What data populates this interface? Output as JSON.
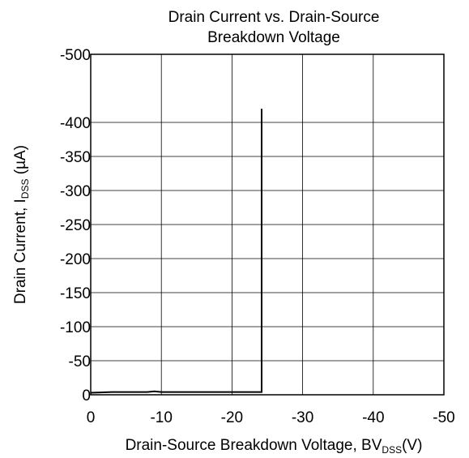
{
  "chart_data": {
    "type": "line",
    "title_line1": "Drain Current vs. Drain-Source",
    "title_line2": "Breakdown Voltage",
    "xlabel": {
      "main": "Drain-Source Breakdown Voltage, BV",
      "subscript": "DSS",
      "unit": "(V)"
    },
    "ylabel": {
      "main": "Drain Current, I",
      "subscript": "DSS",
      "unit": " (µA)"
    },
    "xlim": [
      0,
      -50
    ],
    "ylim": [
      0,
      -500
    ],
    "x_ticks": [
      {
        "value": 0,
        "label": "0"
      },
      {
        "value": -10,
        "label": "-10"
      },
      {
        "value": -20,
        "label": "-20"
      },
      {
        "value": -30,
        "label": "-30"
      },
      {
        "value": -40,
        "label": "-40"
      },
      {
        "value": -50,
        "label": "-50"
      }
    ],
    "y_ticks": [
      {
        "value": 0,
        "label": "0"
      },
      {
        "value": -50,
        "label": "-50"
      },
      {
        "value": -100,
        "label": "-100"
      },
      {
        "value": -150,
        "label": "-150"
      },
      {
        "value": -200,
        "label": "-200"
      },
      {
        "value": -250,
        "label": "-250"
      },
      {
        "value": -300,
        "label": "-300"
      },
      {
        "value": -350,
        "label": "-350"
      },
      {
        "value": -400,
        "label": "-400"
      },
      {
        "value": -500,
        "label": "-500"
      }
    ],
    "grid": true,
    "series": [
      {
        "color": "#000000",
        "x": [
          0,
          -3,
          -6,
          -8,
          -9,
          -10,
          -12,
          -15,
          -20,
          -24,
          -24.2,
          -24.2
        ],
        "y": [
          -3,
          -4,
          -4,
          -4,
          -5,
          -4,
          -4,
          -4,
          -4,
          -4,
          -4,
          -420
        ]
      }
    ]
  }
}
